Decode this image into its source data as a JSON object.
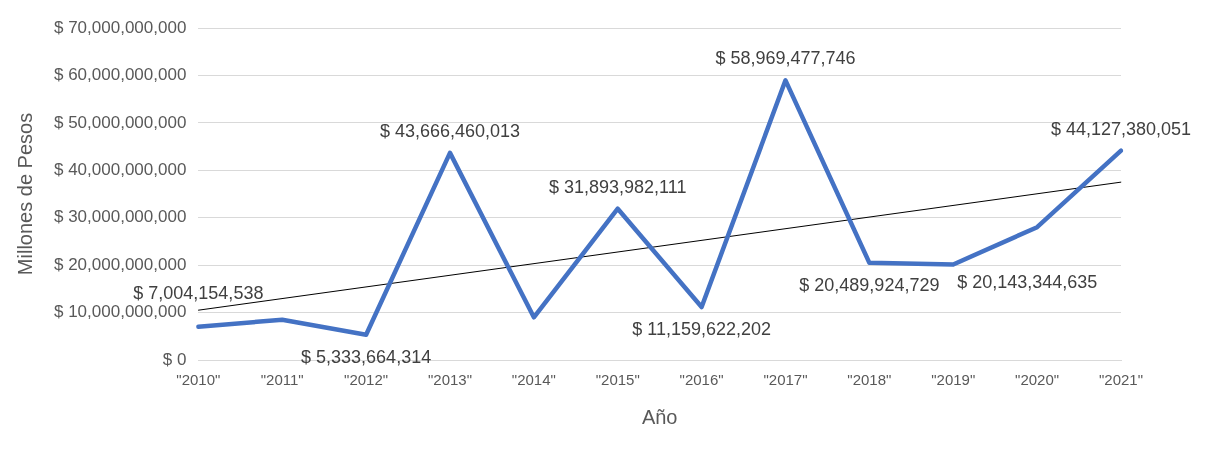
{
  "chart_data": {
    "type": "line",
    "xlabel": "Año",
    "ylabel": "Millones de Pesos",
    "categories": [
      "\"2010\"",
      "\"2011\"",
      "\"2012\"",
      "\"2013\"",
      "\"2014\"",
      "\"2015\"",
      "\"2016\"",
      "\"2017\"",
      "\"2018\"",
      "\"2019\"",
      "\"2020\"",
      "\"2021\""
    ],
    "series": [
      {
        "color": "#4472c4",
        "values": [
          7004154538,
          8500000000,
          5333664314,
          43666460013,
          9000000000,
          31893982111,
          11159622202,
          58969477746,
          20489924729,
          20143344635,
          28000000000,
          44127380051
        ],
        "value_labels": [
          "$ 7,004,154,538",
          null,
          "$ 5,333,664,314",
          "$ 43,666,460,013",
          null,
          "$ 31,893,982,111",
          "$ 11,159,622,202",
          "$ 58,969,477,746",
          "$ 20,489,924,729",
          "$ 20,143,344,635",
          null,
          "$ 44,127,380,051"
        ]
      },
      {
        "type": "line",
        "color": "#000000",
        "x": [
          "\"2010\"",
          "\"2021\""
        ],
        "values": [
          10500000000,
          37500000000
        ]
      }
    ],
    "ylim": [
      0,
      70000000000
    ],
    "yticks": [
      {
        "value": 0,
        "label": "$ 0"
      },
      {
        "value": 10000000000,
        "label": "$ 10,000,000,000"
      },
      {
        "value": 20000000000,
        "label": "$ 20,000,000,000"
      },
      {
        "value": 30000000000,
        "label": "$ 30,000,000,000"
      },
      {
        "value": 40000000000,
        "label": "$ 40,000,000,000"
      },
      {
        "value": 50000000000,
        "label": "$ 50,000,000,000"
      },
      {
        "value": 60000000000,
        "label": "$ 60,000,000,000"
      },
      {
        "value": 70000000000,
        "label": "$ 70,000,000,000"
      }
    ],
    "grid": "y",
    "legend": false,
    "marker": "none",
    "line_style": "solid"
  }
}
